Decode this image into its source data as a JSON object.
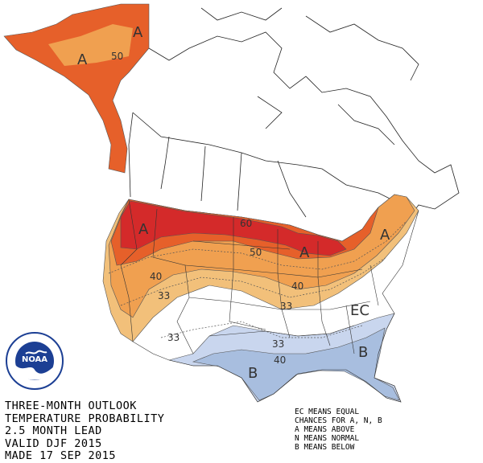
{
  "outlook": {
    "line1": "THREE-MONTH OUTLOOK",
    "line2": "TEMPERATURE PROBABILITY",
    "line3": "2.5 MONTH LEAD",
    "line4": "VALID DJF 2015",
    "line5": "MADE 17 SEP 2015"
  },
  "legend": {
    "line1": "EC MEANS EQUAL",
    "line2": "CHANCES FOR A, N, B",
    "line3": "A MEANS ABOVE",
    "line4": "N MEANS NORMAL",
    "line5": "B MEANS BELOW"
  },
  "map_labels": {
    "alaska_a1": "A",
    "alaska_a2": "A",
    "alaska_50": "50",
    "nw_a": "A",
    "ne_a": "A",
    "gl_a": "A",
    "c60": "60",
    "c50": "50",
    "c40_w": "40",
    "c40_e": "40",
    "c33_w": "33",
    "c33_c": "33",
    "c33_sw": "33",
    "c33_s": "33",
    "c40_s": "40",
    "ec": "EC",
    "b_tx": "B",
    "b_se": "B"
  },
  "logo": {
    "text": "NOAA"
  },
  "colors": {
    "above_33": "#f2c07a",
    "above_40": "#f0a050",
    "above_50": "#e6602a",
    "above_60": "#d42a2a",
    "below_33": "#c9d6ee",
    "below_40": "#a8bedf",
    "noaa_blue": "#1c3f94"
  }
}
